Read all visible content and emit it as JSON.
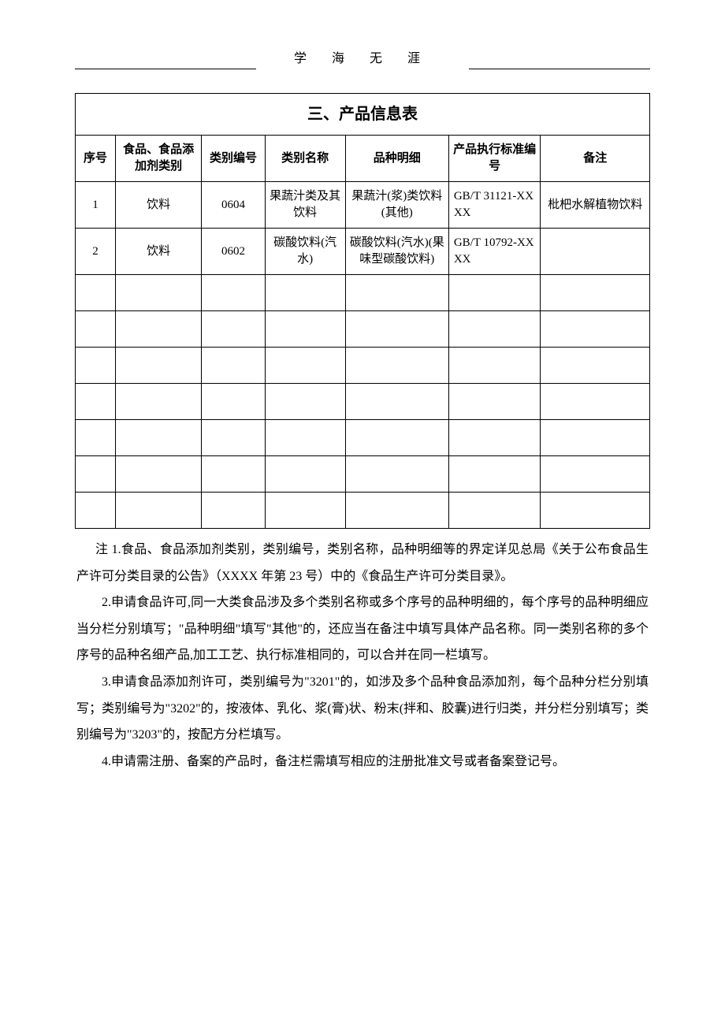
{
  "header": "学 海 无 涯",
  "table": {
    "title": "三、产品信息表",
    "columns": [
      {
        "label": "序号",
        "width": "7%"
      },
      {
        "label": "食品、食品添加剂类别",
        "width": "15%"
      },
      {
        "label": "类别编号",
        "width": "11%"
      },
      {
        "label": "类别名称",
        "width": "14%"
      },
      {
        "label": "品种明细",
        "width": "18%"
      },
      {
        "label": "产品执行标准编号",
        "width": "16%"
      },
      {
        "label": "备注",
        "width": "19%"
      }
    ],
    "rows": [
      {
        "seq": "1",
        "category": "饮料",
        "code": "0604",
        "name": "果蔬汁类及其饮料",
        "detail": "果蔬汁(浆)类饮料(其他)",
        "std": "GB/T 31121-XXXX",
        "remark": "枇杷水解植物饮料"
      },
      {
        "seq": "2",
        "category": "饮料",
        "code": "0602",
        "name": "碳酸饮料(汽水)",
        "detail": "碳酸饮料(汽水)(果味型碳酸饮料)",
        "std": "GB/T 10792-XXXX",
        "remark": ""
      }
    ],
    "emptyRowCount": 7
  },
  "notes": {
    "p1": "注 1.食品、食品添加剂类别，类别编号，类别名称，品种明细等的界定详见总局《关于公布食品生产许可分类目录的公告》（XXXX 年第 23 号）中的《食品生产许可分类目录》。",
    "p2": "2.申请食品许可,同一大类食品涉及多个类别名称或多个序号的品种明细的，每个序号的品种明细应当分栏分别填写；\"品种明细\"填写\"其他\"的，还应当在备注中填写具体产品名称。同一类别名称的多个序号的品种名细产品,加工工艺、执行标准相同的，可以合并在同一栏填写。",
    "p3": "3.申请食品添加剂许可，类别编号为\"3201\"的，如涉及多个品种食品添加剂，每个品种分栏分别填写；类别编号为\"3202\"的，按液体、乳化、浆(膏)状、粉末(拌和、胶囊)进行归类，并分栏分别填写；类别编号为\"3203\"的，按配方分栏填写。",
    "p4": "4.申请需注册、备案的产品时，备注栏需填写相应的注册批准文号或者备案登记号。"
  },
  "colors": {
    "text": "#000000",
    "background": "#ffffff",
    "border": "#000000"
  }
}
